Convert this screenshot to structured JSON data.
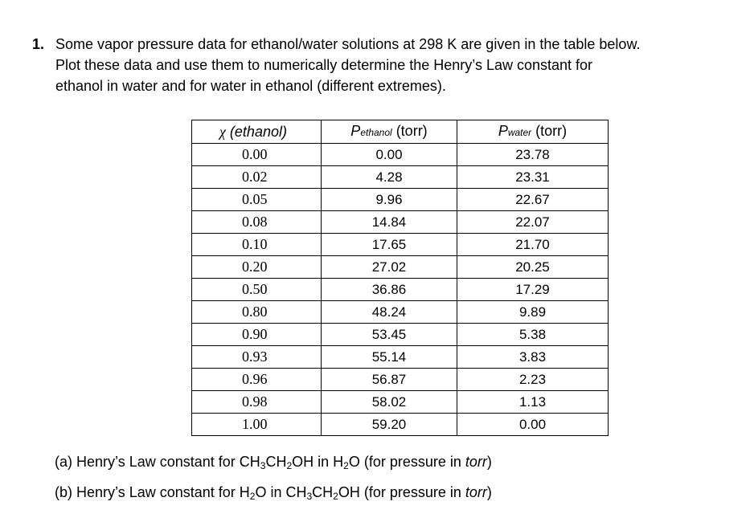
{
  "question": {
    "number": "1.",
    "line1": "Some vapor pressure data for ethanol/water solutions at 298 K are given in the table below.",
    "line2": "Plot these data and use them to numerically determine the Henry’s Law constant for",
    "line3": "ethanol in water and for water in ethanol (different extremes)."
  },
  "table": {
    "headers": {
      "col1_symbol": "χ",
      "col1_label": " (ethanol)",
      "col2_main": "P",
      "col2_sub": "ethanol",
      "col2_unit": " (torr)",
      "col3_main": "P",
      "col3_sub": "water",
      "col3_unit": " (torr)"
    },
    "rows": [
      [
        "0.00",
        "0.00",
        "23.78"
      ],
      [
        "0.02",
        "4.28",
        "23.31"
      ],
      [
        "0.05",
        "9.96",
        "22.67"
      ],
      [
        "0.08",
        "14.84",
        "22.07"
      ],
      [
        "0.10",
        "17.65",
        "21.70"
      ],
      [
        "0.20",
        "27.02",
        "20.25"
      ],
      [
        "0.50",
        "36.86",
        "17.29"
      ],
      [
        "0.80",
        "48.24",
        "9.89"
      ],
      [
        "0.90",
        "53.45",
        "5.38"
      ],
      [
        "0.93",
        "55.14",
        "3.83"
      ],
      [
        "0.96",
        "56.87",
        "2.23"
      ],
      [
        "0.98",
        "58.02",
        "1.13"
      ],
      [
        "1.00",
        "59.20",
        "0.00"
      ]
    ]
  },
  "parts": {
    "a_prefix": "(a)  Henry’s Law constant for CH",
    "a_sub1": "3",
    "a_mid1": "CH",
    "a_sub2": "2",
    "a_mid2": "OH in H",
    "a_sub3": "2",
    "a_mid3": "O (for pressure in ",
    "a_italic": "torr",
    "a_end": ")",
    "b_prefix": "(b)  Henry’s Law constant for H",
    "b_sub1": "2",
    "b_mid1": "O in CH",
    "b_sub2": "3",
    "b_mid2": "CH",
    "b_sub3": "2",
    "b_mid3": "OH (for pressure in ",
    "b_italic": "torr",
    "b_end": ")"
  }
}
